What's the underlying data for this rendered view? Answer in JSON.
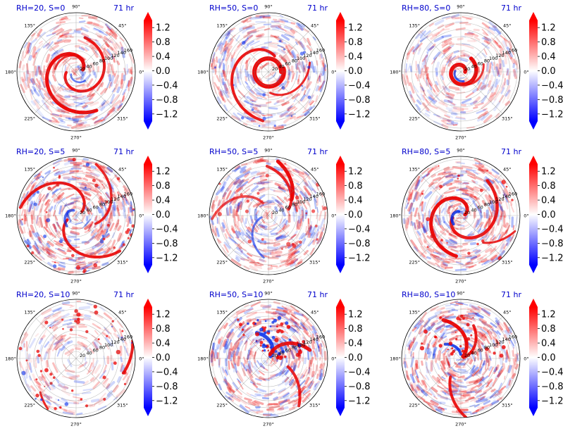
{
  "chart_data": {
    "type": "polar-field-grid",
    "rows": 3,
    "cols": 3,
    "angle_tick_labels": [
      "0°",
      "45°",
      "90°",
      "135°",
      "180°",
      "225°",
      "270°",
      "315°"
    ],
    "radial_tick_labels": [
      "20",
      "40",
      "60",
      "80",
      "100",
      "120",
      "140",
      "160"
    ],
    "colorbar": {
      "colormap": "bwr",
      "ticks": [
        "1.2",
        "0.8",
        "0.4",
        "0.0",
        "−0.4",
        "−0.8",
        "−1.2"
      ],
      "range": [
        -1.4,
        1.4
      ],
      "extend": "both"
    },
    "panels": [
      {
        "title_left": "RH=20, S=0",
        "title_right": "71 hr",
        "pattern": "spiral-strong"
      },
      {
        "title_left": "RH=50, S=0",
        "title_right": "71 hr",
        "pattern": "spiral-ring"
      },
      {
        "title_left": "RH=80, S=0",
        "title_right": "71 hr",
        "pattern": "core-tight"
      },
      {
        "title_left": "RH=20, S=5",
        "title_right": "71 hr",
        "pattern": "bands"
      },
      {
        "title_left": "RH=50, S=5",
        "title_right": "71 hr",
        "pattern": "bands-ne"
      },
      {
        "title_left": "RH=80, S=5",
        "title_right": "71 hr",
        "pattern": "spiral-core"
      },
      {
        "title_left": "RH=20, S=10",
        "title_right": "71 hr",
        "pattern": "sparse"
      },
      {
        "title_left": "RH=50, S=10",
        "title_right": "71 hr",
        "pattern": "core-ne"
      },
      {
        "title_left": "RH=80, S=10",
        "title_right": "71 hr",
        "pattern": "core-sw"
      }
    ]
  }
}
